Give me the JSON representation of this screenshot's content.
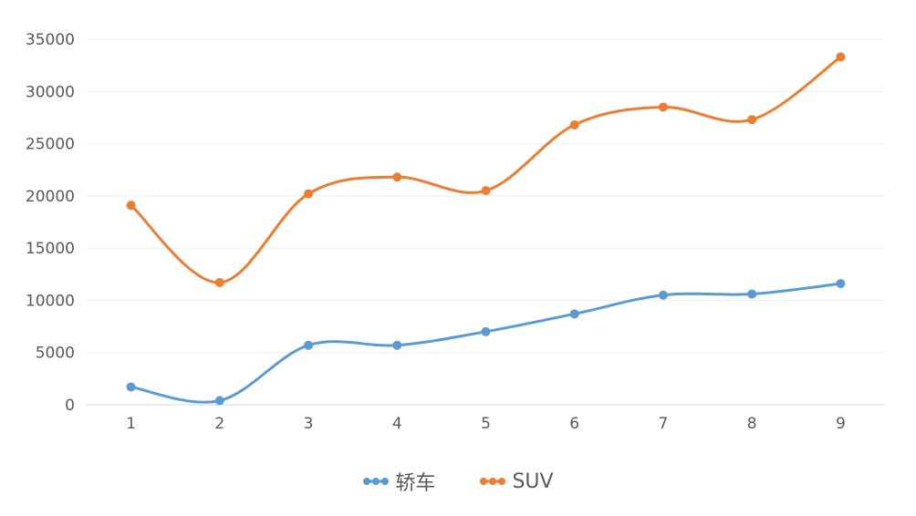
{
  "chart_data": {
    "type": "line",
    "smooth": true,
    "x": [
      1,
      2,
      3,
      4,
      5,
      6,
      7,
      8,
      9
    ],
    "ylim": [
      0,
      35000
    ],
    "yticks": [
      0,
      5000,
      10000,
      15000,
      20000,
      25000,
      30000,
      35000
    ],
    "grid": true,
    "legend_position": "bottom",
    "series": [
      {
        "name": "轿车",
        "color": "#5B9BD5",
        "values": [
          1700,
          400,
          5700,
          5700,
          7000,
          8700,
          10500,
          10600,
          11600
        ]
      },
      {
        "name": "SUV",
        "color": "#ED7D31",
        "values": [
          19100,
          11700,
          20200,
          21800,
          20500,
          26800,
          28500,
          27300,
          33300
        ]
      }
    ]
  }
}
